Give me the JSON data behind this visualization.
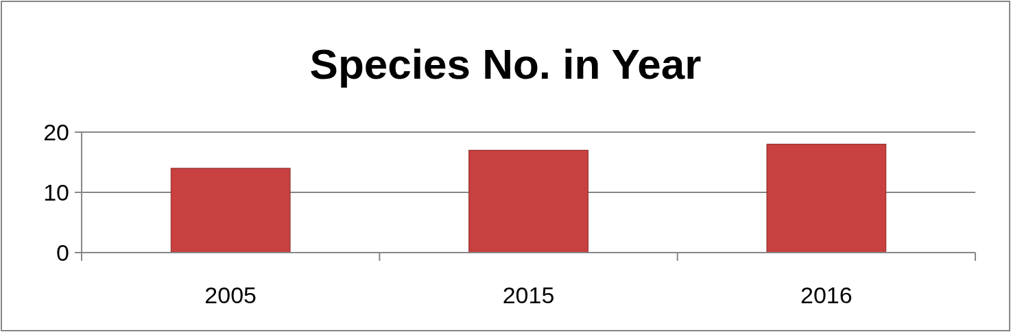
{
  "chart_data": {
    "type": "bar",
    "title": "Species No. in Year",
    "categories": [
      "2005",
      "2015",
      "2016"
    ],
    "values": [
      14,
      17,
      18
    ],
    "color": "#c8403f",
    "ylim": [
      0,
      20
    ],
    "yticks": [
      0,
      10,
      20
    ],
    "grid": "y"
  }
}
